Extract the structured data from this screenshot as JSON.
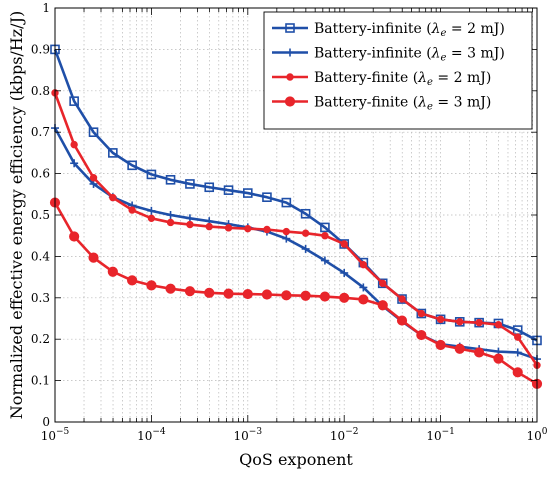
{
  "chart_data": {
    "type": "line",
    "xscale": "log",
    "xlim": [
      1e-05,
      1
    ],
    "ylim": [
      0,
      1
    ],
    "xlabel": "QoS exponent",
    "ylabel": "Normalized effective energy efficiency (kbps/Hz/J)",
    "x_ticks": [
      {
        "base": "10",
        "exp": "−5",
        "value": 1e-05
      },
      {
        "base": "10",
        "exp": "−4",
        "value": 0.0001
      },
      {
        "base": "10",
        "exp": "−3",
        "value": 0.001
      },
      {
        "base": "10",
        "exp": "−2",
        "value": 0.01
      },
      {
        "base": "10",
        "exp": "−1",
        "value": 0.1
      },
      {
        "base": "10",
        "exp": "0",
        "value": 1
      }
    ],
    "y_ticks": [
      "0",
      "0.1",
      "0.2",
      "0.3",
      "0.4",
      "0.5",
      "0.6",
      "0.7",
      "0.8",
      "0.9",
      "1"
    ],
    "grid": true,
    "legend_position": "top-right",
    "x": [
      1e-05,
      1.58e-05,
      2.51e-05,
      3.98e-05,
      6.31e-05,
      0.0001,
      0.000158,
      0.000251,
      0.000398,
      0.000631,
      0.001,
      0.00158,
      0.00251,
      0.00398,
      0.00631,
      0.01,
      0.0158,
      0.0251,
      0.0398,
      0.0631,
      0.1,
      0.158,
      0.251,
      0.398,
      0.631,
      1
    ],
    "series": [
      {
        "name_prefix": "Battery-infinite (",
        "name_value": " = 2 mJ)",
        "color": "#1f4fa8",
        "marker": "square",
        "values": [
          0.9,
          0.775,
          0.7,
          0.65,
          0.62,
          0.598,
          0.585,
          0.575,
          0.567,
          0.56,
          0.553,
          0.543,
          0.53,
          0.503,
          0.47,
          0.43,
          0.385,
          0.335,
          0.297,
          0.262,
          0.248,
          0.242,
          0.24,
          0.238,
          0.222,
          0.197
        ]
      },
      {
        "name_prefix": "Battery-infinite (",
        "name_value": " = 3 mJ)",
        "color": "#1f4fa8",
        "marker": "plus",
        "values": [
          0.71,
          0.625,
          0.575,
          0.543,
          0.523,
          0.51,
          0.5,
          0.492,
          0.485,
          0.478,
          0.47,
          0.46,
          0.443,
          0.418,
          0.39,
          0.36,
          0.325,
          0.28,
          0.243,
          0.21,
          0.188,
          0.182,
          0.176,
          0.17,
          0.168,
          0.152
        ]
      },
      {
        "name_prefix": "Battery-finite (",
        "name_value": " = 2 mJ)",
        "color": "#e8252b",
        "marker": "dot",
        "values": [
          0.795,
          0.67,
          0.59,
          0.542,
          0.512,
          0.492,
          0.482,
          0.477,
          0.472,
          0.469,
          0.467,
          0.465,
          0.46,
          0.456,
          0.45,
          0.43,
          0.38,
          0.335,
          0.297,
          0.262,
          0.248,
          0.242,
          0.24,
          0.235,
          0.205,
          0.137
        ]
      },
      {
        "name_prefix": "Battery-finite (",
        "name_value": " = 3 mJ)",
        "color": "#e8252b",
        "marker": "circle",
        "values": [
          0.53,
          0.448,
          0.397,
          0.363,
          0.342,
          0.33,
          0.322,
          0.316,
          0.312,
          0.31,
          0.309,
          0.308,
          0.306,
          0.305,
          0.303,
          0.3,
          0.296,
          0.282,
          0.245,
          0.21,
          0.186,
          0.177,
          0.168,
          0.153,
          0.12,
          0.092
        ]
      }
    ],
    "legend_symbol": "λ",
    "legend_symbol_sub": "e"
  }
}
